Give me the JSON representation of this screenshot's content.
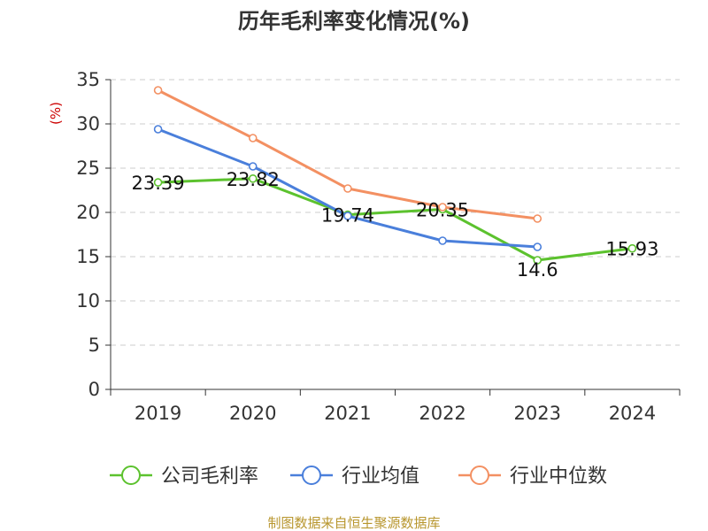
{
  "chart_data": {
    "type": "line",
    "title": "历年毛利率变化情况(%)",
    "ylabel": "(%)",
    "xlabel": "",
    "categories": [
      "2019",
      "2020",
      "2021",
      "2022",
      "2023",
      "2024"
    ],
    "ylim": [
      0,
      35
    ],
    "yticks": [
      0,
      5,
      10,
      15,
      20,
      25,
      30,
      35
    ],
    "grid": true,
    "legend_position": "bottom",
    "series": [
      {
        "name": "公司毛利率",
        "color": "#5cc22e",
        "values": [
          23.39,
          23.82,
          19.74,
          20.35,
          14.6,
          15.93
        ],
        "labels": [
          "23.39",
          "23.82",
          "19.74",
          "20.35",
          "14.6",
          "15.93"
        ]
      },
      {
        "name": "行业均值",
        "color": "#4a7fdb",
        "values": [
          29.4,
          25.2,
          19.6,
          16.8,
          16.1,
          null
        ]
      },
      {
        "name": "行业中位数",
        "color": "#f39062",
        "values": [
          33.8,
          28.4,
          22.7,
          20.6,
          19.3,
          null
        ]
      }
    ],
    "source": "制图数据来自恒生聚源数据库"
  }
}
